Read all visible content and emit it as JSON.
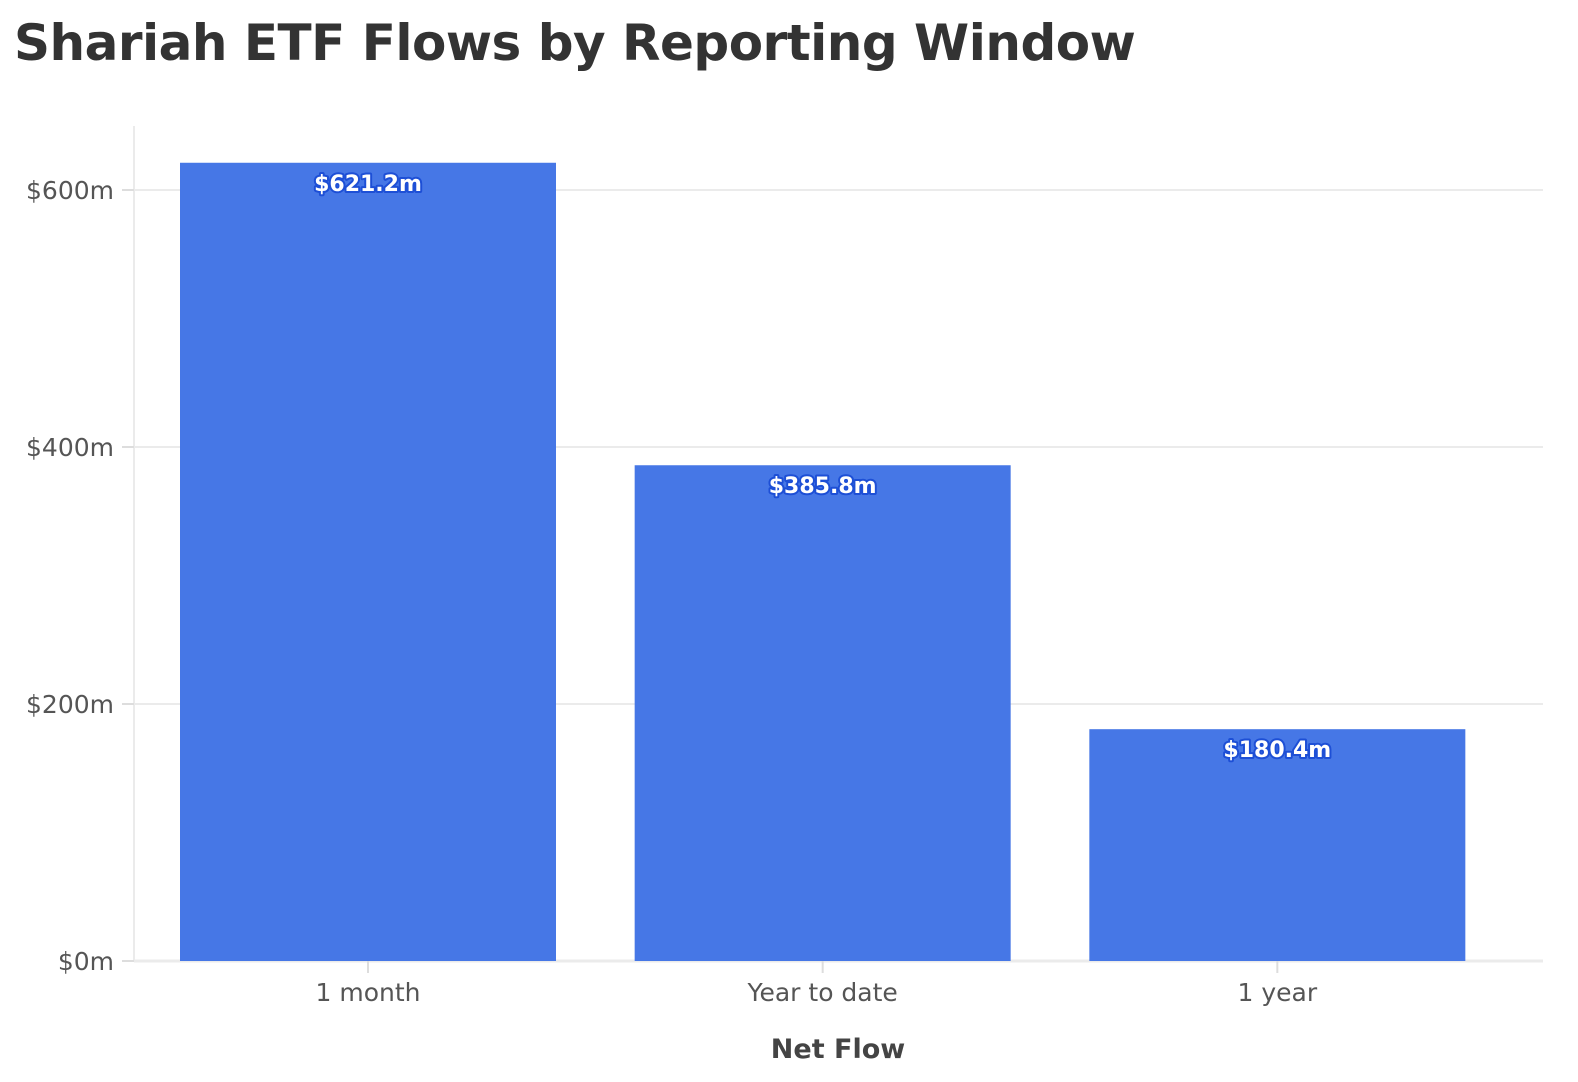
{
  "chart_data": {
    "type": "bar",
    "title": "Shariah ETF Flows by Reporting Window",
    "xlabel": "Net Flow",
    "ylabel": "",
    "categories": [
      "1 month",
      "Year to date",
      "1 year"
    ],
    "values": [
      621.2,
      385.8,
      180.4
    ],
    "data_labels": [
      "$621.2m",
      "$385.8m",
      "$180.4m"
    ],
    "yticks": [
      0,
      200,
      400,
      600
    ],
    "ytick_labels": [
      "$0m",
      "$200m",
      "$400m",
      "$600m"
    ],
    "ylim": [
      0,
      650
    ],
    "grid": true,
    "legend": "none",
    "bar_color": "#4677e6",
    "label_outline_color": "#1d4fd6"
  }
}
